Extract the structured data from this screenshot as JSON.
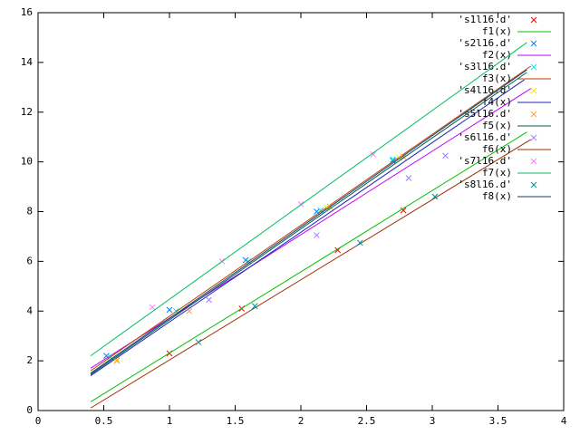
{
  "chart_data": {
    "type": "line",
    "xlim": [
      0,
      4
    ],
    "ylim": [
      0,
      16
    ],
    "xticks": [
      0,
      0.5,
      1,
      1.5,
      2,
      2.5,
      3,
      3.5,
      4
    ],
    "yticks": [
      0,
      2,
      4,
      6,
      8,
      10,
      12,
      14,
      16
    ],
    "legend": "top-right",
    "series": [
      {
        "name": "'s1l16.d'",
        "mode": "points",
        "color": "#ff0000",
        "x": [
          1.0,
          1.55,
          2.28,
          2.78
        ],
        "values": [
          2.3,
          4.1,
          6.45,
          8.05
        ]
      },
      {
        "name": "f1(x)",
        "mode": "line",
        "color": "#00c000",
        "x": [
          0.4,
          3.72
        ],
        "values": [
          0.35,
          11.2
        ]
      },
      {
        "name": "'s2l16.d'",
        "mode": "points",
        "color": "#0080ff",
        "x": [
          0.52,
          1.0,
          1.58,
          2.12,
          2.7
        ],
        "values": [
          2.2,
          4.05,
          6.05,
          8.0,
          10.05
        ]
      },
      {
        "name": "f2(x)",
        "mode": "line",
        "color": "#c000ff",
        "x": [
          0.4,
          3.75
        ],
        "values": [
          1.7,
          12.95
        ]
      },
      {
        "name": "'s3l16.d'",
        "mode": "points",
        "color": "#00eeee",
        "x": [
          0.55,
          1.05,
          1.6,
          2.15,
          2.7
        ],
        "values": [
          2.15,
          4.0,
          6.0,
          8.05,
          10.1
        ]
      },
      {
        "name": "f3(x)",
        "mode": "line",
        "color": "#c04000",
        "x": [
          0.4,
          3.75
        ],
        "values": [
          1.6,
          13.85
        ]
      },
      {
        "name": "'s4l16.d'",
        "mode": "points",
        "color": "#eeee00",
        "x": [
          0.6,
          2.2,
          2.75
        ],
        "values": [
          2.05,
          8.15,
          10.15
        ]
      },
      {
        "name": "f4(x)",
        "mode": "line",
        "color": "#2020c0",
        "x": [
          0.4,
          3.7
        ],
        "values": [
          1.4,
          13.3
        ]
      },
      {
        "name": "'s5l16.d'",
        "mode": "points",
        "color": "#ffa040",
        "x": [
          0.6,
          1.15,
          2.22,
          2.78
        ],
        "values": [
          2.0,
          4.0,
          8.2,
          10.2
        ]
      },
      {
        "name": "f5(x)",
        "mode": "line",
        "color": "#006040",
        "x": [
          0.4,
          3.72
        ],
        "values": [
          1.45,
          13.6
        ]
      },
      {
        "name": "'s6l16.d'",
        "mode": "points",
        "color": "#a080ff",
        "x": [
          1.3,
          2.12,
          2.82,
          3.1
        ],
        "values": [
          4.45,
          7.05,
          9.35,
          10.25
        ]
      },
      {
        "name": "f6(x)",
        "mode": "line",
        "color": "#a03000",
        "x": [
          0.4,
          3.75
        ],
        "values": [
          0.1,
          10.9
        ]
      },
      {
        "name": "'s7l16.d'",
        "mode": "points",
        "color": "#ff80ff",
        "x": [
          0.87,
          1.4,
          2.0,
          2.55
        ],
        "values": [
          4.15,
          6.0,
          8.3,
          10.3
        ]
      },
      {
        "name": "f7(x)",
        "mode": "line",
        "color": "#00c060",
        "x": [
          0.4,
          3.72
        ],
        "values": [
          2.2,
          14.8
        ]
      },
      {
        "name": "'s8l16.d'",
        "mode": "points",
        "color": "#0090a0",
        "x": [
          1.22,
          1.65,
          2.45,
          3.02
        ],
        "values": [
          2.75,
          4.2,
          6.75,
          8.6
        ]
      },
      {
        "name": "f8(x)",
        "mode": "line",
        "color": "#004080",
        "x": [
          0.4,
          3.72
        ],
        "values": [
          1.5,
          13.7
        ]
      }
    ]
  }
}
